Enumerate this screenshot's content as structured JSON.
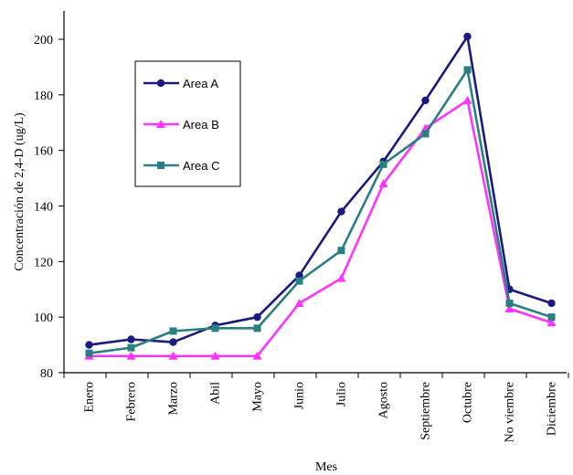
{
  "chart_data": {
    "type": "line",
    "xlabel": "Mes",
    "ylabel": "Concentración de 2,4-D (ug/L)",
    "ylim": [
      80,
      210
    ],
    "yticks": [
      80,
      100,
      120,
      140,
      160,
      180,
      200
    ],
    "grid": false,
    "legend_position": "top-left",
    "categories": [
      "Enero",
      "Febrero",
      "Marzo",
      "Abil",
      "Mayo",
      "Junio",
      "Julio",
      "Agosto",
      "Septiembre",
      "Octubre",
      "No viembre",
      "Diciembre"
    ],
    "series": [
      {
        "name": "Area A",
        "color": "#1a1a80",
        "marker": "circle",
        "values": [
          90,
          92,
          91,
          97,
          100,
          115,
          138,
          156,
          178,
          201,
          110,
          105
        ]
      },
      {
        "name": "Area B",
        "color": "#ff33ff",
        "marker": "triangle",
        "values": [
          86,
          86,
          86,
          86,
          86,
          105,
          114,
          148,
          168,
          178,
          103,
          98
        ]
      },
      {
        "name": "Area C",
        "color": "#2a8080",
        "marker": "square",
        "values": [
          87,
          89,
          95,
          96,
          96,
          113,
          124,
          155,
          166,
          189,
          105,
          100
        ]
      }
    ]
  }
}
